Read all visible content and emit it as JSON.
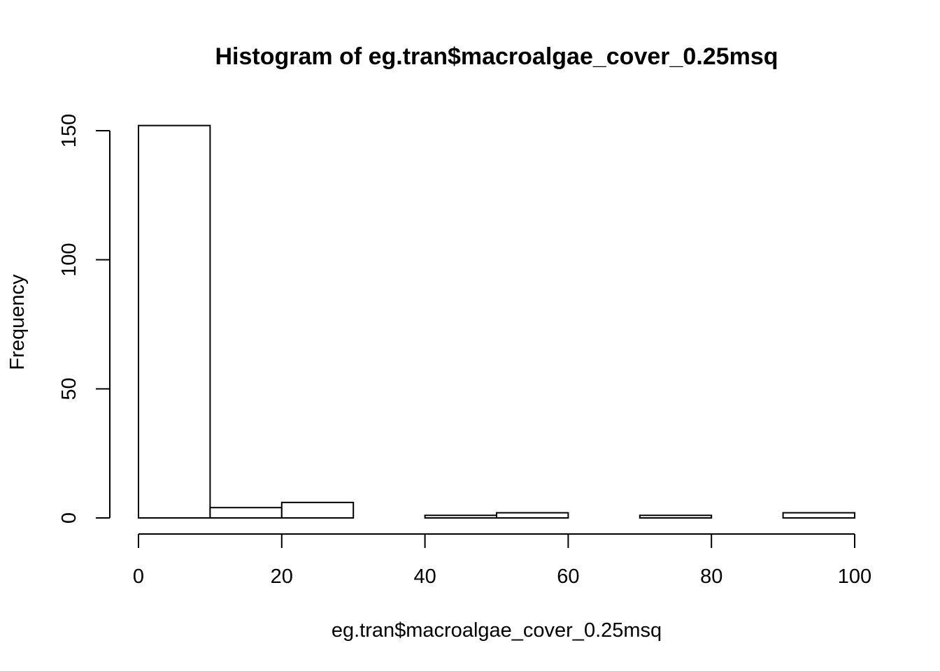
{
  "chart_data": {
    "type": "bar",
    "title": "Histogram of eg.tran$macroalgae_cover_0.25msq",
    "xlabel": "eg.tran$macroalgae_cover_0.25msq",
    "ylabel": "Frequency",
    "xlim": [
      0,
      100
    ],
    "ylim": [
      0,
      150
    ],
    "x_ticks": [
      0,
      20,
      40,
      60,
      80,
      100
    ],
    "y_ticks": [
      0,
      50,
      100,
      150
    ],
    "grid": false,
    "bins": [
      {
        "start": 0,
        "end": 10,
        "count": 152
      },
      {
        "start": 10,
        "end": 20,
        "count": 4
      },
      {
        "start": 20,
        "end": 30,
        "count": 6
      },
      {
        "start": 30,
        "end": 40,
        "count": 0
      },
      {
        "start": 40,
        "end": 50,
        "count": 1
      },
      {
        "start": 50,
        "end": 60,
        "count": 2
      },
      {
        "start": 60,
        "end": 70,
        "count": 0
      },
      {
        "start": 70,
        "end": 80,
        "count": 1
      },
      {
        "start": 80,
        "end": 90,
        "count": 0
      },
      {
        "start": 90,
        "end": 100,
        "count": 2
      }
    ]
  }
}
